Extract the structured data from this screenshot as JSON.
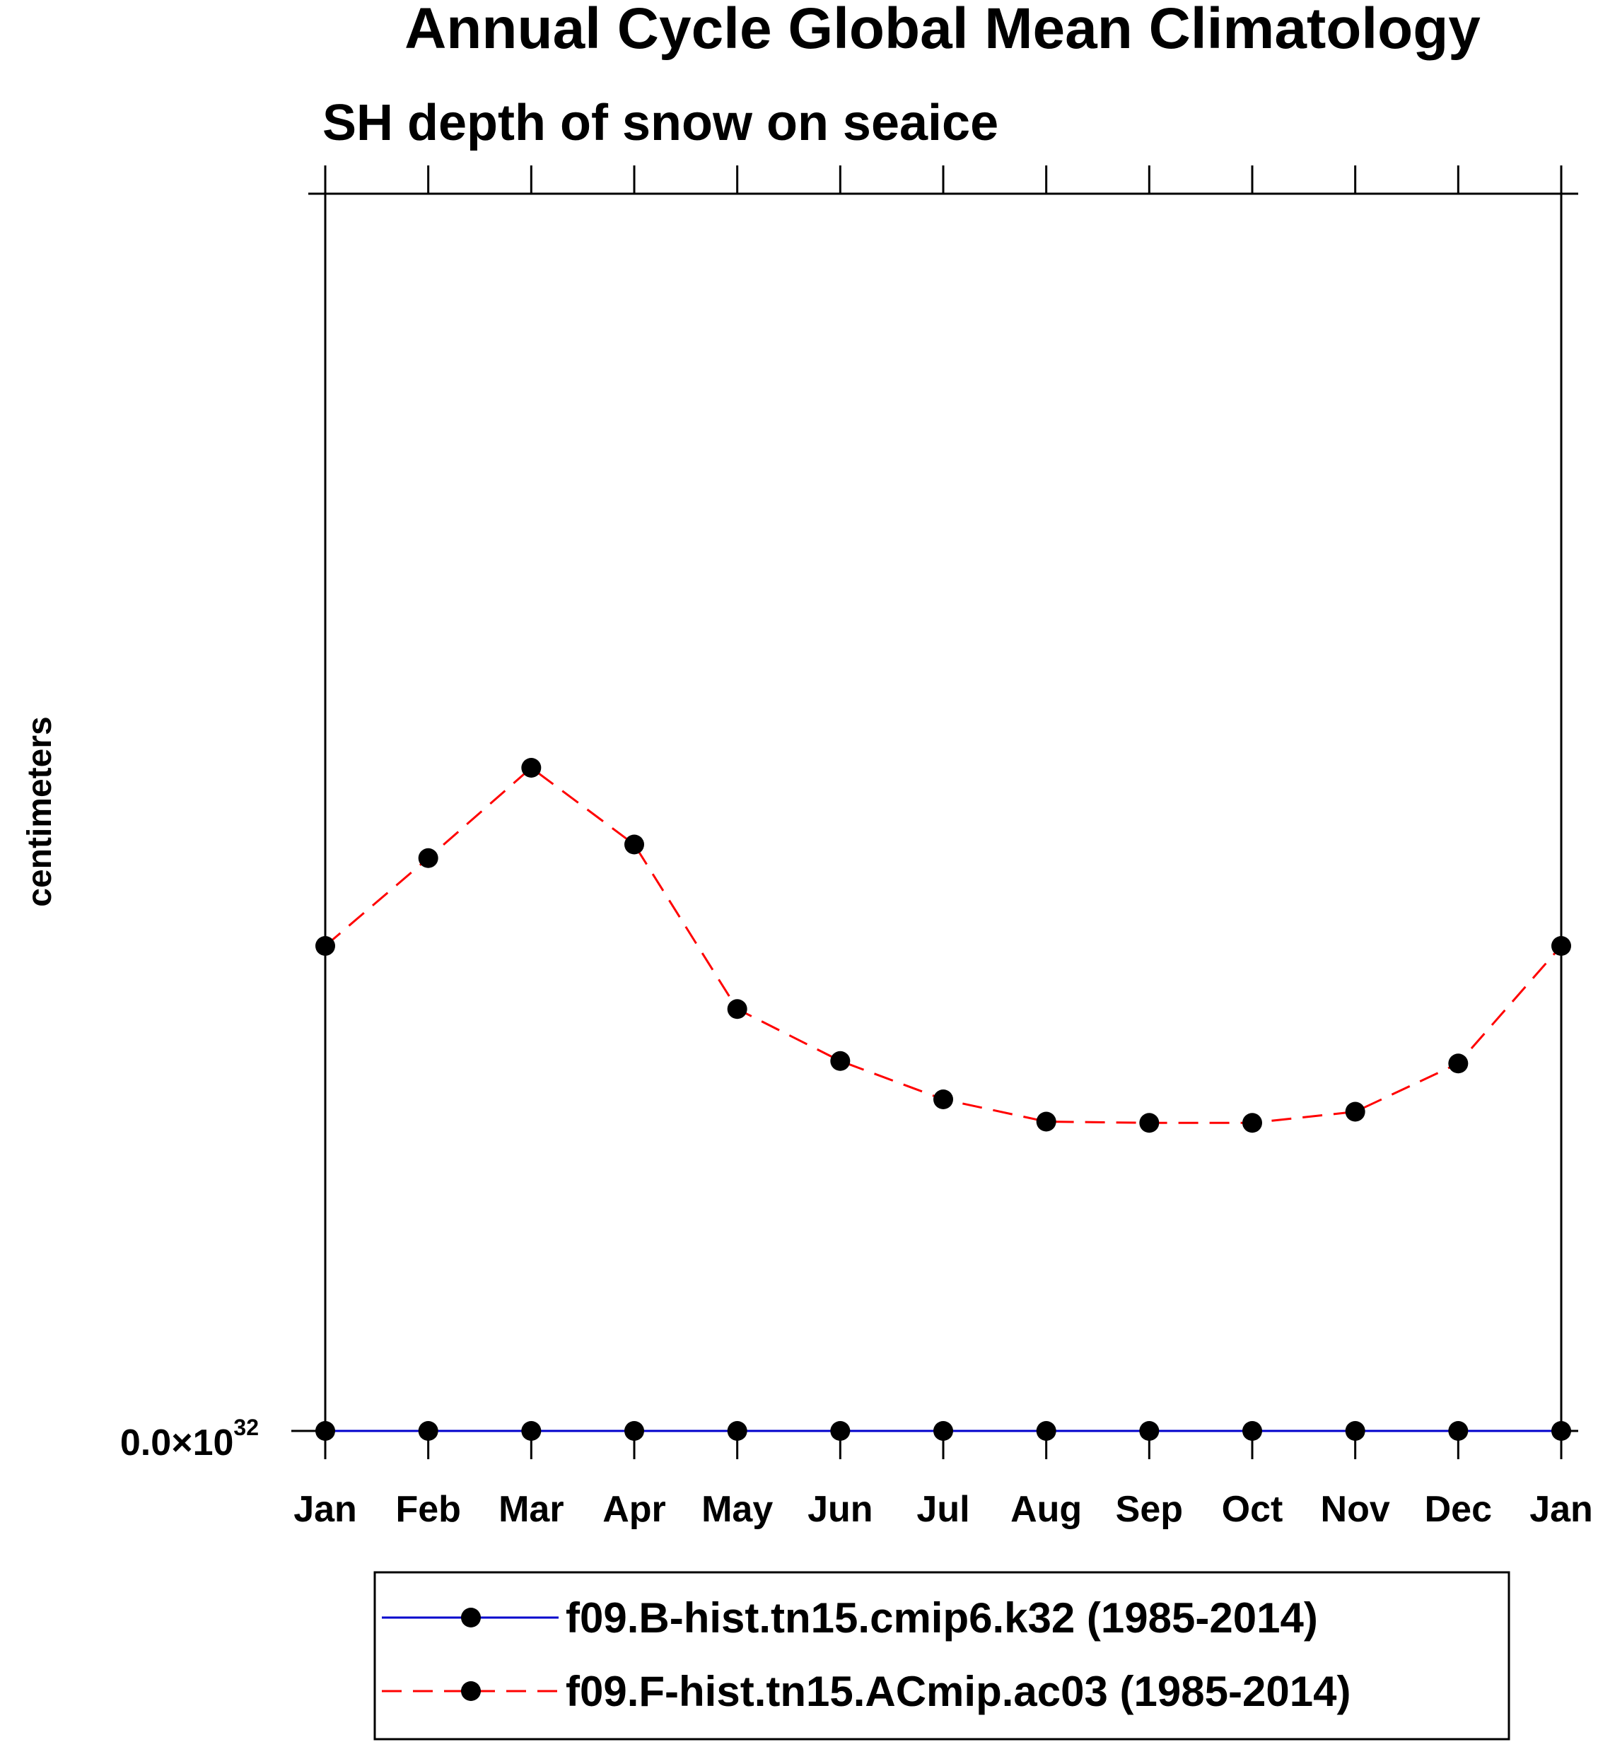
{
  "chart_data": {
    "type": "line",
    "title": "Annual Cycle Global Mean Climatology",
    "subtitle": "SH depth of snow on seaice",
    "ylabel": "centimeters",
    "xlabel": "",
    "categories": [
      "Jan",
      "Feb",
      "Mar",
      "Apr",
      "May",
      "Jun",
      "Jul",
      "Aug",
      "Sep",
      "Oct",
      "Nov",
      "Dec",
      "Jan"
    ],
    "y_tick_label": {
      "mantissa": "0.0",
      "times": "×",
      "base": "10",
      "exponent": "32"
    },
    "ylim": [
      0,
      100
    ],
    "series": [
      {
        "name": "f09.B-hist.tn15.cmip6.k32 (1985-2014)",
        "color": "#0000cc",
        "marker_color": "#000000",
        "line_style": "solid",
        "values": [
          0,
          0,
          0,
          0,
          0,
          0,
          0,
          0,
          0,
          0,
          0,
          0,
          0
        ]
      },
      {
        "name": "f09.F-hist.tn15.ACmip.ac03 (1985-2014)",
        "color": "#ff0000",
        "marker_color": "#000000",
        "line_style": "dashed",
        "values": [
          39.2,
          46.3,
          53.6,
          47.4,
          34.1,
          29.9,
          26.8,
          25.0,
          24.9,
          24.9,
          25.8,
          29.7,
          39.2
        ]
      }
    ]
  }
}
